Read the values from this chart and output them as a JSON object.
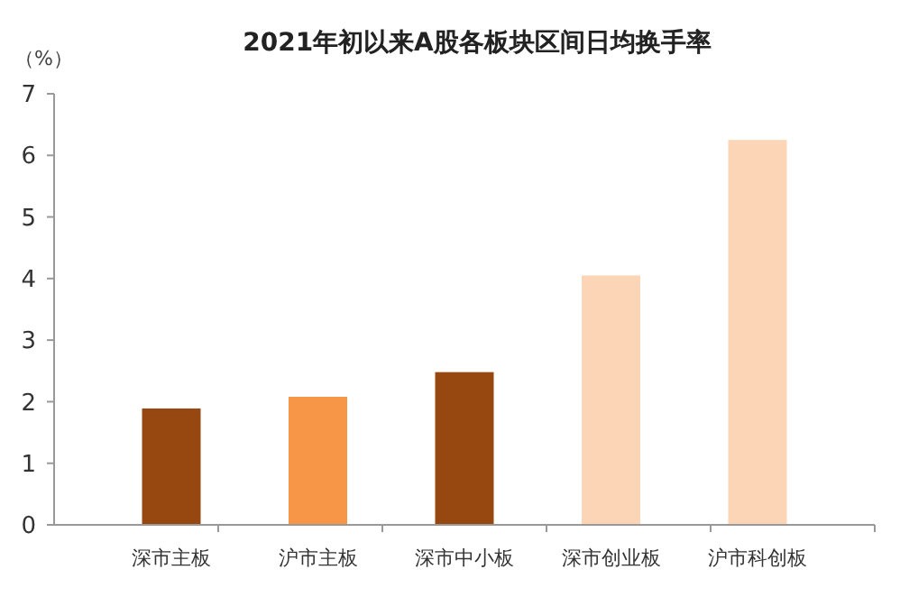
{
  "chart_data": {
    "type": "bar",
    "title": "2021年初以来A股各板块区间日均换手率",
    "ylabel": "（%）",
    "categories": [
      "深市主板",
      "沪市主板",
      "深市中小板",
      "深市创业板",
      "沪市科创板"
    ],
    "values": [
      1.89,
      2.08,
      2.48,
      4.05,
      6.25
    ],
    "colors": [
      "#974810",
      "#f79646",
      "#974810",
      "#fbd5b5",
      "#fbd5b5"
    ],
    "ylim": [
      0,
      7
    ],
    "yticks": [
      0,
      1,
      2,
      3,
      4,
      5,
      6,
      7
    ],
    "grid": false
  }
}
